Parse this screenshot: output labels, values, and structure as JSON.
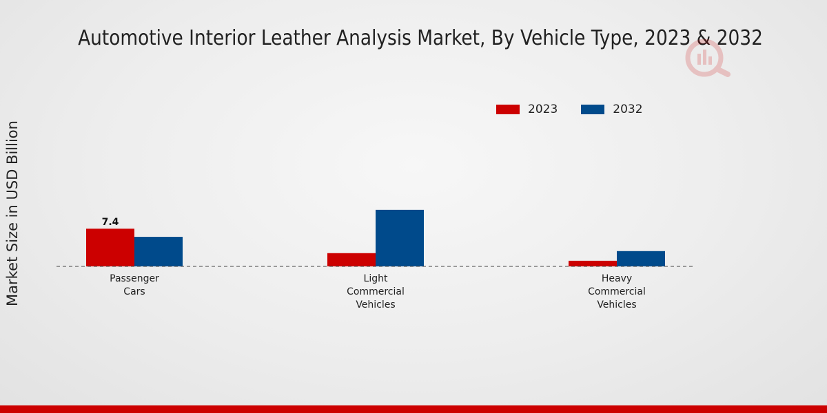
{
  "chart_data": {
    "type": "bar",
    "title": "Automotive Interior Leather Analysis Market, By Vehicle Type, 2023 & 2032",
    "xlabel": "",
    "ylabel": "Market Size in USD Billion",
    "categories": [
      [
        "Passenger",
        "Cars"
      ],
      [
        "Light",
        "Commercial",
        "Vehicles"
      ],
      [
        "Heavy",
        "Commercial",
        "Vehicles"
      ]
    ],
    "series": [
      {
        "name": "2023",
        "color": "#cc0000",
        "values": [
          7.4,
          2.6,
          1.1
        ]
      },
      {
        "name": "2032",
        "color": "#004a8b",
        "values": [
          5.8,
          11.1,
          3.0
        ]
      }
    ],
    "data_labels": [
      {
        "series": 0,
        "category": 0,
        "text": "7.4"
      }
    ],
    "ylim": [
      0,
      30
    ],
    "grid": false,
    "legend": "top-right"
  }
}
